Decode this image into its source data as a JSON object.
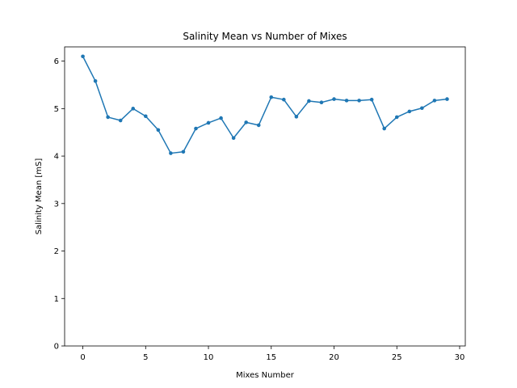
{
  "chart_data": {
    "type": "line",
    "title": "Salinity Mean vs Number of Mixes",
    "xlabel": "Mixes Number",
    "ylabel": "Salinity Mean [mS]",
    "xlim": [
      -1.45,
      30.45
    ],
    "ylim": [
      0,
      6.3
    ],
    "xticks": [
      0,
      5,
      10,
      15,
      20,
      25,
      30
    ],
    "yticks": [
      0,
      1,
      2,
      3,
      4,
      5,
      6
    ],
    "grid": false,
    "legend": "none",
    "series": [
      {
        "color": "#1f77b4",
        "marker": "circle",
        "x": [
          0,
          1,
          2,
          3,
          4,
          5,
          6,
          7,
          8,
          9,
          10,
          11,
          12,
          13,
          14,
          15,
          16,
          17,
          18,
          19,
          20,
          21,
          22,
          23,
          24,
          25,
          26,
          27,
          28,
          29
        ],
        "y": [
          6.1,
          5.58,
          4.82,
          4.75,
          5.0,
          4.84,
          4.55,
          4.06,
          4.09,
          4.58,
          4.7,
          4.8,
          4.38,
          4.71,
          4.65,
          5.24,
          5.19,
          4.83,
          5.16,
          5.13,
          5.2,
          5.17,
          5.17,
          5.19,
          4.58,
          4.82,
          4.94,
          5.01,
          5.17,
          5.2
        ]
      }
    ]
  }
}
